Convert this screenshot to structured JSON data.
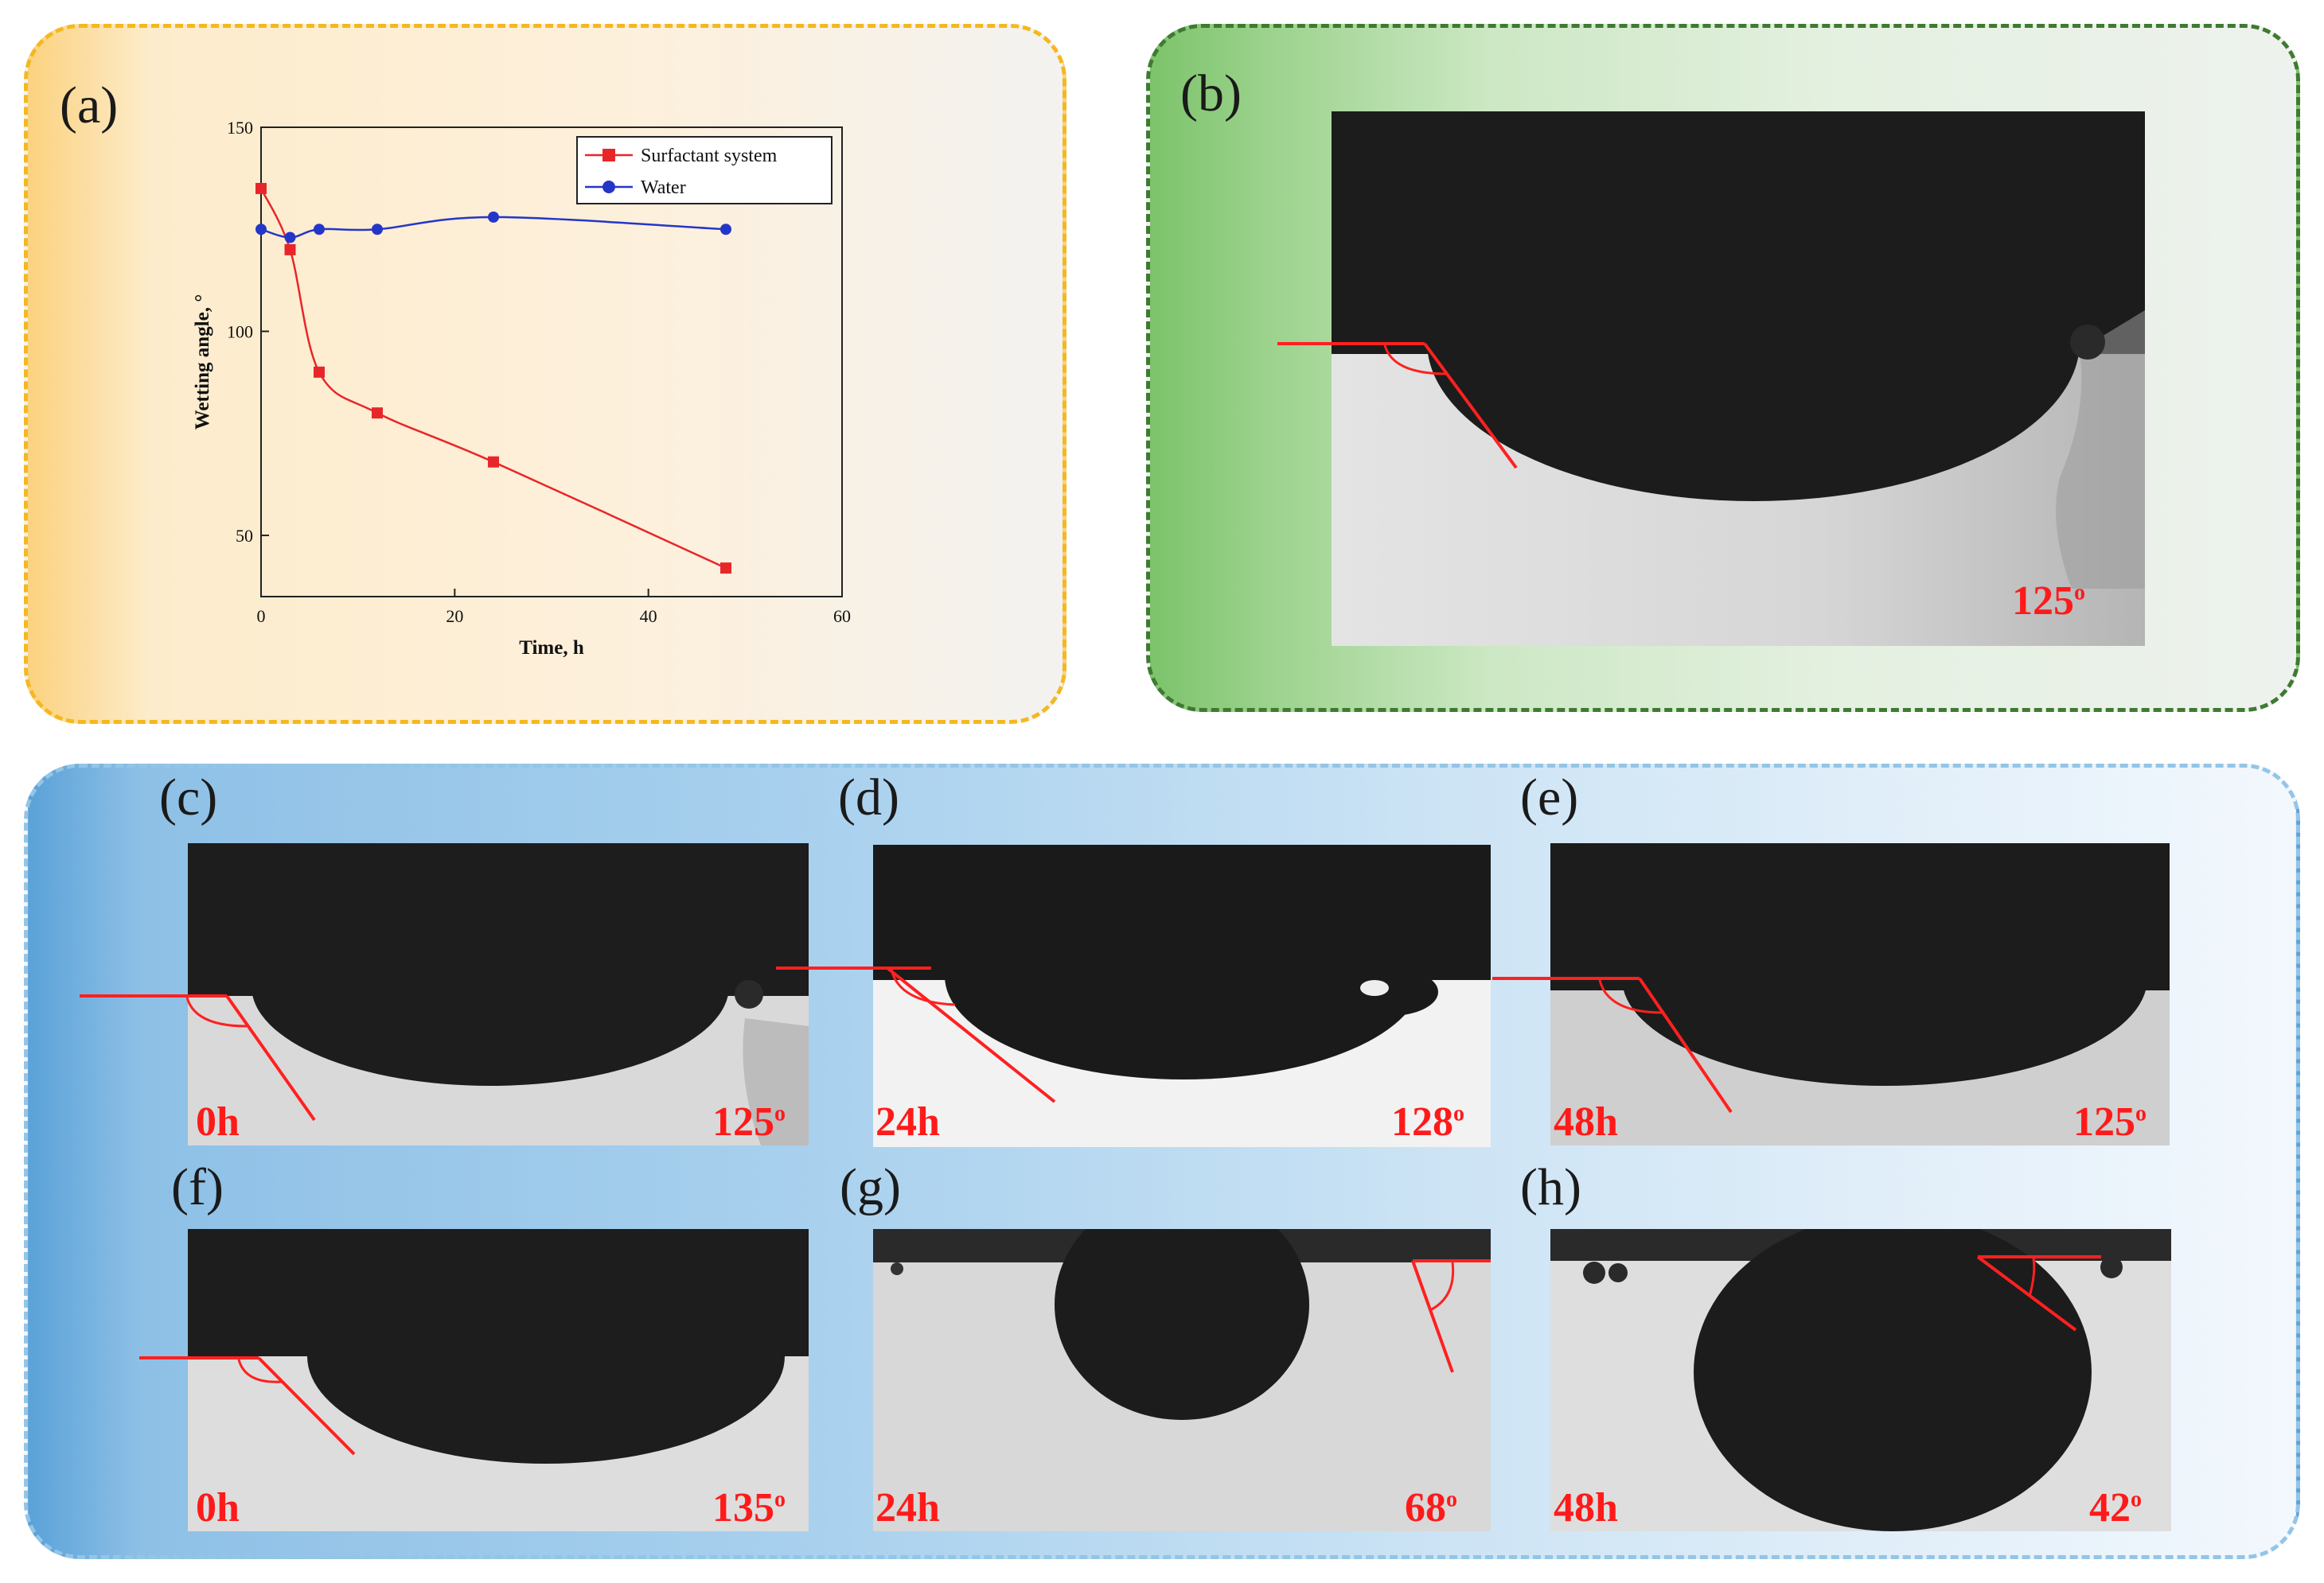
{
  "panels": {
    "a": "(a)",
    "b": "(b)",
    "c": "(c)",
    "d": "(d)",
    "e": "(e)",
    "f": "(f)",
    "g": "(g)",
    "h": "(h)"
  },
  "photos": {
    "b": {
      "time": "",
      "angle": "125"
    },
    "c": {
      "time": "0h",
      "angle": "125"
    },
    "d": {
      "time": "24h",
      "angle": "128"
    },
    "e": {
      "time": "48h",
      "angle": "125"
    },
    "f": {
      "time": "0h",
      "angle": "135"
    },
    "g": {
      "time": "24h",
      "angle": "68"
    },
    "h": {
      "time": "48h",
      "angle": "42"
    }
  },
  "degree_mark": "o",
  "chart_data": {
    "type": "line",
    "xlabel": "Time, h",
    "ylabel": "Wetting angle, °",
    "xlim": [
      0,
      60
    ],
    "ylim": [
      35,
      150
    ],
    "xticks": [
      0,
      20,
      40,
      60
    ],
    "yticks": [
      50,
      100,
      150
    ],
    "legend_position": "top-right",
    "series": [
      {
        "name": "Surfactant system",
        "color": "#e8262a",
        "marker": "square",
        "x": [
          0,
          3,
          6,
          12,
          24,
          48
        ],
        "y": [
          135,
          120,
          90,
          80,
          68,
          42
        ]
      },
      {
        "name": "Water",
        "color": "#2436c8",
        "marker": "circle",
        "x": [
          0,
          3,
          6,
          12,
          24,
          48
        ],
        "y": [
          125,
          123,
          125,
          125,
          128,
          125
        ]
      }
    ]
  }
}
